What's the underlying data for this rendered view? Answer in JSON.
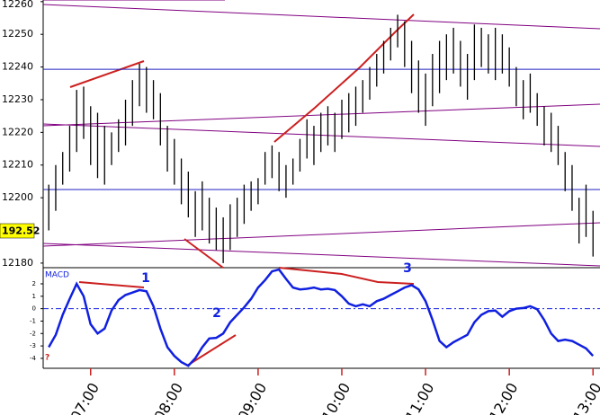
{
  "chart_data": [
    {
      "type": "hilo",
      "color": "#000000",
      "x": [
        390,
        395,
        400,
        405,
        410,
        415,
        420,
        425,
        430,
        435,
        440,
        445,
        450,
        455,
        460,
        465,
        470,
        475,
        480,
        485,
        490,
        495,
        500,
        505,
        510,
        515,
        520,
        525,
        530,
        535,
        540,
        545,
        550,
        555,
        560,
        565,
        570,
        575,
        580,
        585,
        590,
        595,
        600,
        605,
        610,
        615,
        620,
        625,
        630,
        635,
        640,
        645,
        650,
        655,
        660,
        665,
        670,
        675,
        680,
        685,
        690,
        695,
        700,
        705,
        710,
        715,
        720,
        725,
        730,
        735,
        740,
        745,
        750,
        755,
        760,
        765,
        770,
        775,
        780
      ],
      "low": [
        12190,
        12196,
        12204,
        12208,
        12214,
        12218,
        12210,
        12206,
        12204,
        12210,
        12214,
        12216,
        12222,
        12228,
        12226,
        12224,
        12216,
        12208,
        12204,
        12198,
        12194,
        12188,
        12190,
        12186,
        12184,
        12180,
        12184,
        12188,
        12192,
        12196,
        12198,
        12204,
        12206,
        12202,
        12200,
        12204,
        12208,
        12212,
        12210,
        12214,
        12216,
        12214,
        12218,
        12220,
        12222,
        12226,
        12230,
        12234,
        12238,
        12242,
        12246,
        12240,
        12232,
        12226,
        12222,
        12228,
        12232,
        12236,
        12238,
        12234,
        12230,
        12236,
        12240,
        12238,
        12236,
        12238,
        12234,
        12228,
        12224,
        12226,
        12222,
        12216,
        12214,
        12210,
        12202,
        12196,
        12186,
        12188,
        12182
      ],
      "high": [
        12204,
        12210,
        12214,
        12222,
        12233,
        12234,
        12228,
        12226,
        12222,
        12220,
        12224,
        12230,
        12236,
        12241,
        12240,
        12236,
        12232,
        12222,
        12218,
        12212,
        12208,
        12202,
        12205,
        12200,
        12197,
        12194,
        12198,
        12200,
        12204,
        12205,
        12206,
        12214,
        12216,
        12214,
        12210,
        12212,
        12218,
        12224,
        12222,
        12226,
        12228,
        12226,
        12230,
        12232,
        12234,
        12236,
        12240,
        12244,
        12248,
        12252,
        12256,
        12254,
        12248,
        12242,
        12238,
        12244,
        12248,
        12250,
        12252,
        12248,
        12244,
        12253,
        12252,
        12250,
        12252,
        12250,
        12246,
        12240,
        12236,
        12238,
        12232,
        12228,
        12226,
        12222,
        12214,
        12210,
        12200,
        12204,
        12196
      ],
      "xlim": [
        386,
        785
      ],
      "ylim": [
        12178.6,
        12260.5
      ],
      "yticks": [
        12180,
        12200,
        12210,
        12220,
        12230,
        12240,
        12250,
        12260
      ],
      "hlines": [
        12239.3,
        12202.5
      ],
      "hline_color": "#2020c0",
      "current_label": "192.52"
    },
    {
      "type": "line",
      "title": "MACD",
      "color": "#1020e0",
      "x": [
        390,
        395,
        400,
        405,
        410,
        415,
        420,
        425,
        430,
        435,
        440,
        445,
        450,
        455,
        460,
        465,
        470,
        475,
        480,
        485,
        490,
        495,
        500,
        505,
        510,
        515,
        520,
        525,
        530,
        535,
        540,
        545,
        550,
        555,
        560,
        565,
        570,
        575,
        580,
        585,
        590,
        595,
        600,
        605,
        610,
        615,
        620,
        625,
        630,
        635,
        640,
        645,
        650,
        655,
        660,
        665,
        670,
        675,
        680,
        685,
        690,
        695,
        700,
        705,
        710,
        715,
        720,
        725,
        730,
        735,
        740,
        745,
        750,
        755,
        760,
        765,
        770,
        775,
        780
      ],
      "values": [
        -3.1,
        -2.1,
        -0.5,
        0.8,
        2.0,
        1.0,
        -1.25,
        -2.0,
        -1.6,
        -0.15,
        0.7,
        1.1,
        1.3,
        1.5,
        1.4,
        0.2,
        -1.6,
        -3.1,
        -3.8,
        -4.3,
        -4.6,
        -4.0,
        -3.1,
        -2.4,
        -2.35,
        -2.0,
        -1.1,
        -0.5,
        0.1,
        0.8,
        1.7,
        2.3,
        3.0,
        3.15,
        2.4,
        1.7,
        1.55,
        1.6,
        1.7,
        1.55,
        1.6,
        1.5,
        1.0,
        0.4,
        0.2,
        0.35,
        0.2,
        0.6,
        0.8,
        1.1,
        1.4,
        1.7,
        1.9,
        1.55,
        0.6,
        -0.9,
        -2.6,
        -3.1,
        -2.7,
        -2.4,
        -2.1,
        -1.1,
        -0.5,
        -0.2,
        -0.15,
        -0.65,
        -0.2,
        0,
        0.05,
        0.2,
        -0.05,
        -0.9,
        -2.0,
        -2.6,
        -2.5,
        -2.6,
        -2.9,
        -3.2,
        -3.8
      ],
      "xlim": [
        386,
        785
      ],
      "ylim": [
        -4.8,
        3.3
      ],
      "yticks": [
        -4,
        -3,
        -2,
        -1,
        0,
        1,
        2
      ],
      "annotations": [
        "1",
        "2",
        "3"
      ],
      "marker": "?",
      "xticks": [
        {
          "value": 420,
          "label": "07:00"
        },
        {
          "value": 480,
          "label": "08:00"
        },
        {
          "value": 540,
          "label": "09:00"
        },
        {
          "value": 600,
          "label": "10:00"
        },
        {
          "value": 660,
          "label": "11:00"
        },
        {
          "value": 720,
          "label": "12:00"
        },
        {
          "value": 780,
          "label": "13:00"
        }
      ]
    }
  ]
}
